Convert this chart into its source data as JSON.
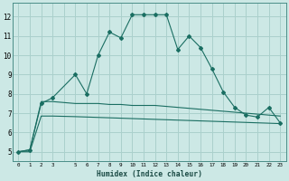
{
  "xlabel": "Humidex (Indice chaleur)",
  "x_tick_labels": [
    "0",
    "1",
    "2",
    "3",
    "5",
    "6",
    "7",
    "8",
    "9",
    "10",
    "11",
    "12",
    "13",
    "14",
    "15",
    "16",
    "17",
    "18",
    "19",
    "20",
    "21",
    "22",
    "23"
  ],
  "ylim": [
    4.5,
    12.7
  ],
  "xlim": [
    -0.5,
    23.5
  ],
  "y_ticks": [
    5,
    6,
    7,
    8,
    9,
    10,
    11,
    12
  ],
  "background_color": "#cce8e5",
  "grid_color": "#aad0cc",
  "line_color": "#1a6e62",
  "line1_x": [
    0,
    1,
    2,
    3,
    5,
    6,
    7,
    8,
    9,
    10,
    11,
    12,
    13,
    14,
    15,
    16,
    17,
    18,
    19,
    20,
    21,
    22,
    23
  ],
  "line1_y": [
    5.0,
    5.1,
    7.5,
    7.8,
    9.0,
    8.0,
    10.0,
    11.2,
    10.9,
    12.1,
    12.1,
    12.1,
    12.1,
    10.3,
    11.0,
    10.4,
    9.3,
    8.1,
    7.3,
    6.9,
    6.8,
    7.3,
    6.5
  ],
  "line2_x": [
    0,
    1,
    2,
    3,
    5,
    6,
    7,
    8,
    9,
    10,
    11,
    12,
    13,
    14,
    15,
    16,
    17,
    18,
    19,
    20,
    21,
    22,
    23
  ],
  "line2_y": [
    5.0,
    5.1,
    7.6,
    7.6,
    7.5,
    7.5,
    7.5,
    7.45,
    7.45,
    7.4,
    7.4,
    7.4,
    7.35,
    7.3,
    7.25,
    7.2,
    7.15,
    7.1,
    7.05,
    7.0,
    6.95,
    6.9,
    6.85
  ],
  "line3_x": [
    0,
    1,
    2,
    3,
    5,
    6,
    7,
    8,
    9,
    10,
    11,
    12,
    13,
    14,
    15,
    16,
    17,
    18,
    19,
    20,
    21,
    22,
    23
  ],
  "line3_y": [
    5.0,
    5.0,
    6.85,
    6.85,
    6.82,
    6.8,
    6.78,
    6.76,
    6.74,
    6.72,
    6.7,
    6.68,
    6.66,
    6.64,
    6.62,
    6.6,
    6.58,
    6.56,
    6.54,
    6.52,
    6.5,
    6.48,
    6.46
  ]
}
